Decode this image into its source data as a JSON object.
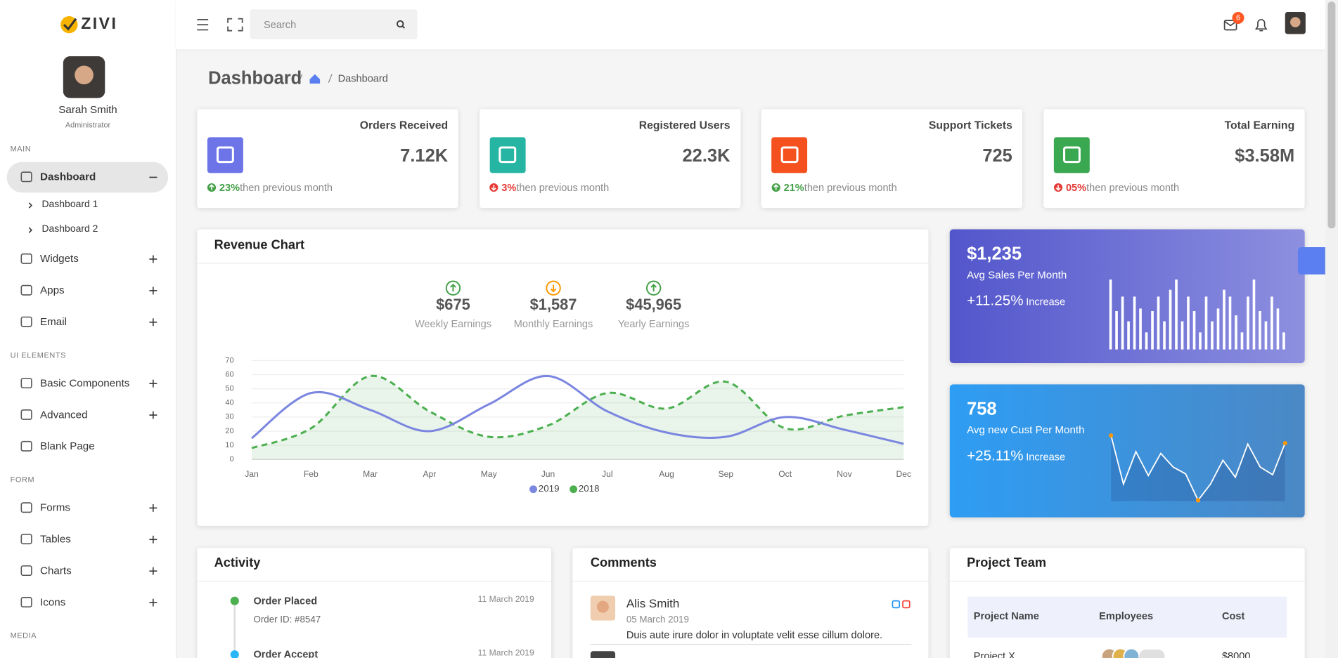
{
  "brand": {
    "name": "ZIVI"
  },
  "user": {
    "name": "Sarah Smith",
    "role": "Administrator"
  },
  "topbar": {
    "search_placeholder": "Search",
    "mail_badge": 6
  },
  "sidebar": [
    {
      "title": "MAIN",
      "items": [
        {
          "label": "Dashboard",
          "active": true,
          "children": [
            "Dashboard 1",
            "Dashboard 2"
          ]
        },
        {
          "label": "Widgets"
        },
        {
          "label": "Apps"
        },
        {
          "label": "Email"
        }
      ]
    },
    {
      "title": "UI ELEMENTS",
      "items": [
        {
          "label": "Basic Components"
        },
        {
          "label": "Advanced"
        },
        {
          "label": "Blank Page",
          "expandable": false
        }
      ]
    },
    {
      "title": "FORM",
      "items": [
        {
          "label": "Forms"
        },
        {
          "label": "Tables"
        },
        {
          "label": "Charts"
        },
        {
          "label": "Icons"
        }
      ]
    },
    {
      "title": "MEDIA",
      "items": []
    }
  ],
  "page": {
    "title": "Dashboard",
    "breadcrumb": [
      "Dashboard"
    ]
  },
  "stats": [
    {
      "title": "Orders Received",
      "value": "7.12K",
      "change": "23%",
      "note": "then previous month",
      "trend": "up",
      "color": "#6c74e8"
    },
    {
      "title": "Registered Users",
      "value": "22.3K",
      "change": "3%",
      "note": "then previous month",
      "trend": "down",
      "color": "#26b5a3"
    },
    {
      "title": "Support Tickets",
      "value": "725",
      "change": "21%",
      "note": "then previous month",
      "trend": "up",
      "color": "#f4511e"
    },
    {
      "title": "Total Earning",
      "value": "$3.58M",
      "change": "05%",
      "note": "then previous month",
      "trend": "down",
      "color": "#3aa751"
    }
  ],
  "earnings": [
    {
      "value": "$675",
      "label": "Weekly Earnings",
      "trend": "up"
    },
    {
      "value": "$1,587",
      "label": "Monthly Earnings",
      "trend": "down"
    },
    {
      "value": "$45,965",
      "label": "Yearly Earnings",
      "trend": "up"
    }
  ],
  "chart_data": [
    {
      "type": "line",
      "title": "Revenue Chart",
      "categories": [
        "Jan",
        "Feb",
        "Mar",
        "Apr",
        "May",
        "Jun",
        "Jul",
        "Aug",
        "Sep",
        "Oct",
        "Nov",
        "Dec"
      ],
      "series": [
        {
          "name": "2019",
          "color": "#7b86e0",
          "values": [
            15,
            47,
            35,
            20,
            39,
            59,
            34,
            19,
            16,
            30,
            21,
            11
          ]
        },
        {
          "name": "2018",
          "color": "#4caf50",
          "dashed": true,
          "area": true,
          "values": [
            8,
            22,
            59,
            34,
            16,
            24,
            47,
            36,
            55,
            22,
            31,
            37
          ]
        }
      ],
      "ylim": [
        0,
        70
      ],
      "yticks": [
        0,
        10,
        20,
        30,
        40,
        50,
        60,
        70
      ],
      "grid": true,
      "legend": "bottom"
    },
    {
      "type": "bar",
      "color": "#ffffff",
      "values": [
        82,
        45,
        62,
        33,
        62,
        48,
        20,
        45,
        62,
        33,
        70,
        82,
        33,
        62,
        45,
        20,
        62,
        33,
        48,
        70,
        62,
        40,
        20,
        62,
        82,
        45,
        33,
        62,
        48,
        20
      ]
    },
    {
      "type": "line",
      "color": "#ffffff",
      "marker_color": "#ff9800",
      "values": [
        79,
        22,
        60,
        32,
        58,
        42,
        34,
        3,
        22,
        50,
        30,
        69,
        42,
        33,
        70
      ]
    }
  ],
  "widgets": [
    {
      "value": "$1,235",
      "label": "Avg Sales Per Month",
      "change": "+11.25%",
      "change_label": "Increase"
    },
    {
      "value": "758",
      "label": "Avg new Cust Per Month",
      "change": "+25.11%",
      "change_label": "Increase"
    }
  ],
  "activity": {
    "title": "Activity",
    "items": [
      {
        "title": "Order Placed",
        "detail": "Order ID: #8547",
        "date": "11 March 2019",
        "color": "#4caf50"
      },
      {
        "title": "Order Accept",
        "date": "11 March 2019",
        "color": "#29b6f6"
      }
    ]
  },
  "comments": {
    "title": "Comments",
    "items": [
      {
        "name": "Alis Smith",
        "date": "05 March 2019",
        "text": "Duis aute irure dolor in voluptate velit esse cillum dolore."
      }
    ]
  },
  "project_team": {
    "title": "Project Team",
    "columns": [
      "Project Name",
      "Employees",
      "Cost"
    ],
    "rows": [
      {
        "name": "Project X",
        "cost": "$8000"
      }
    ]
  }
}
